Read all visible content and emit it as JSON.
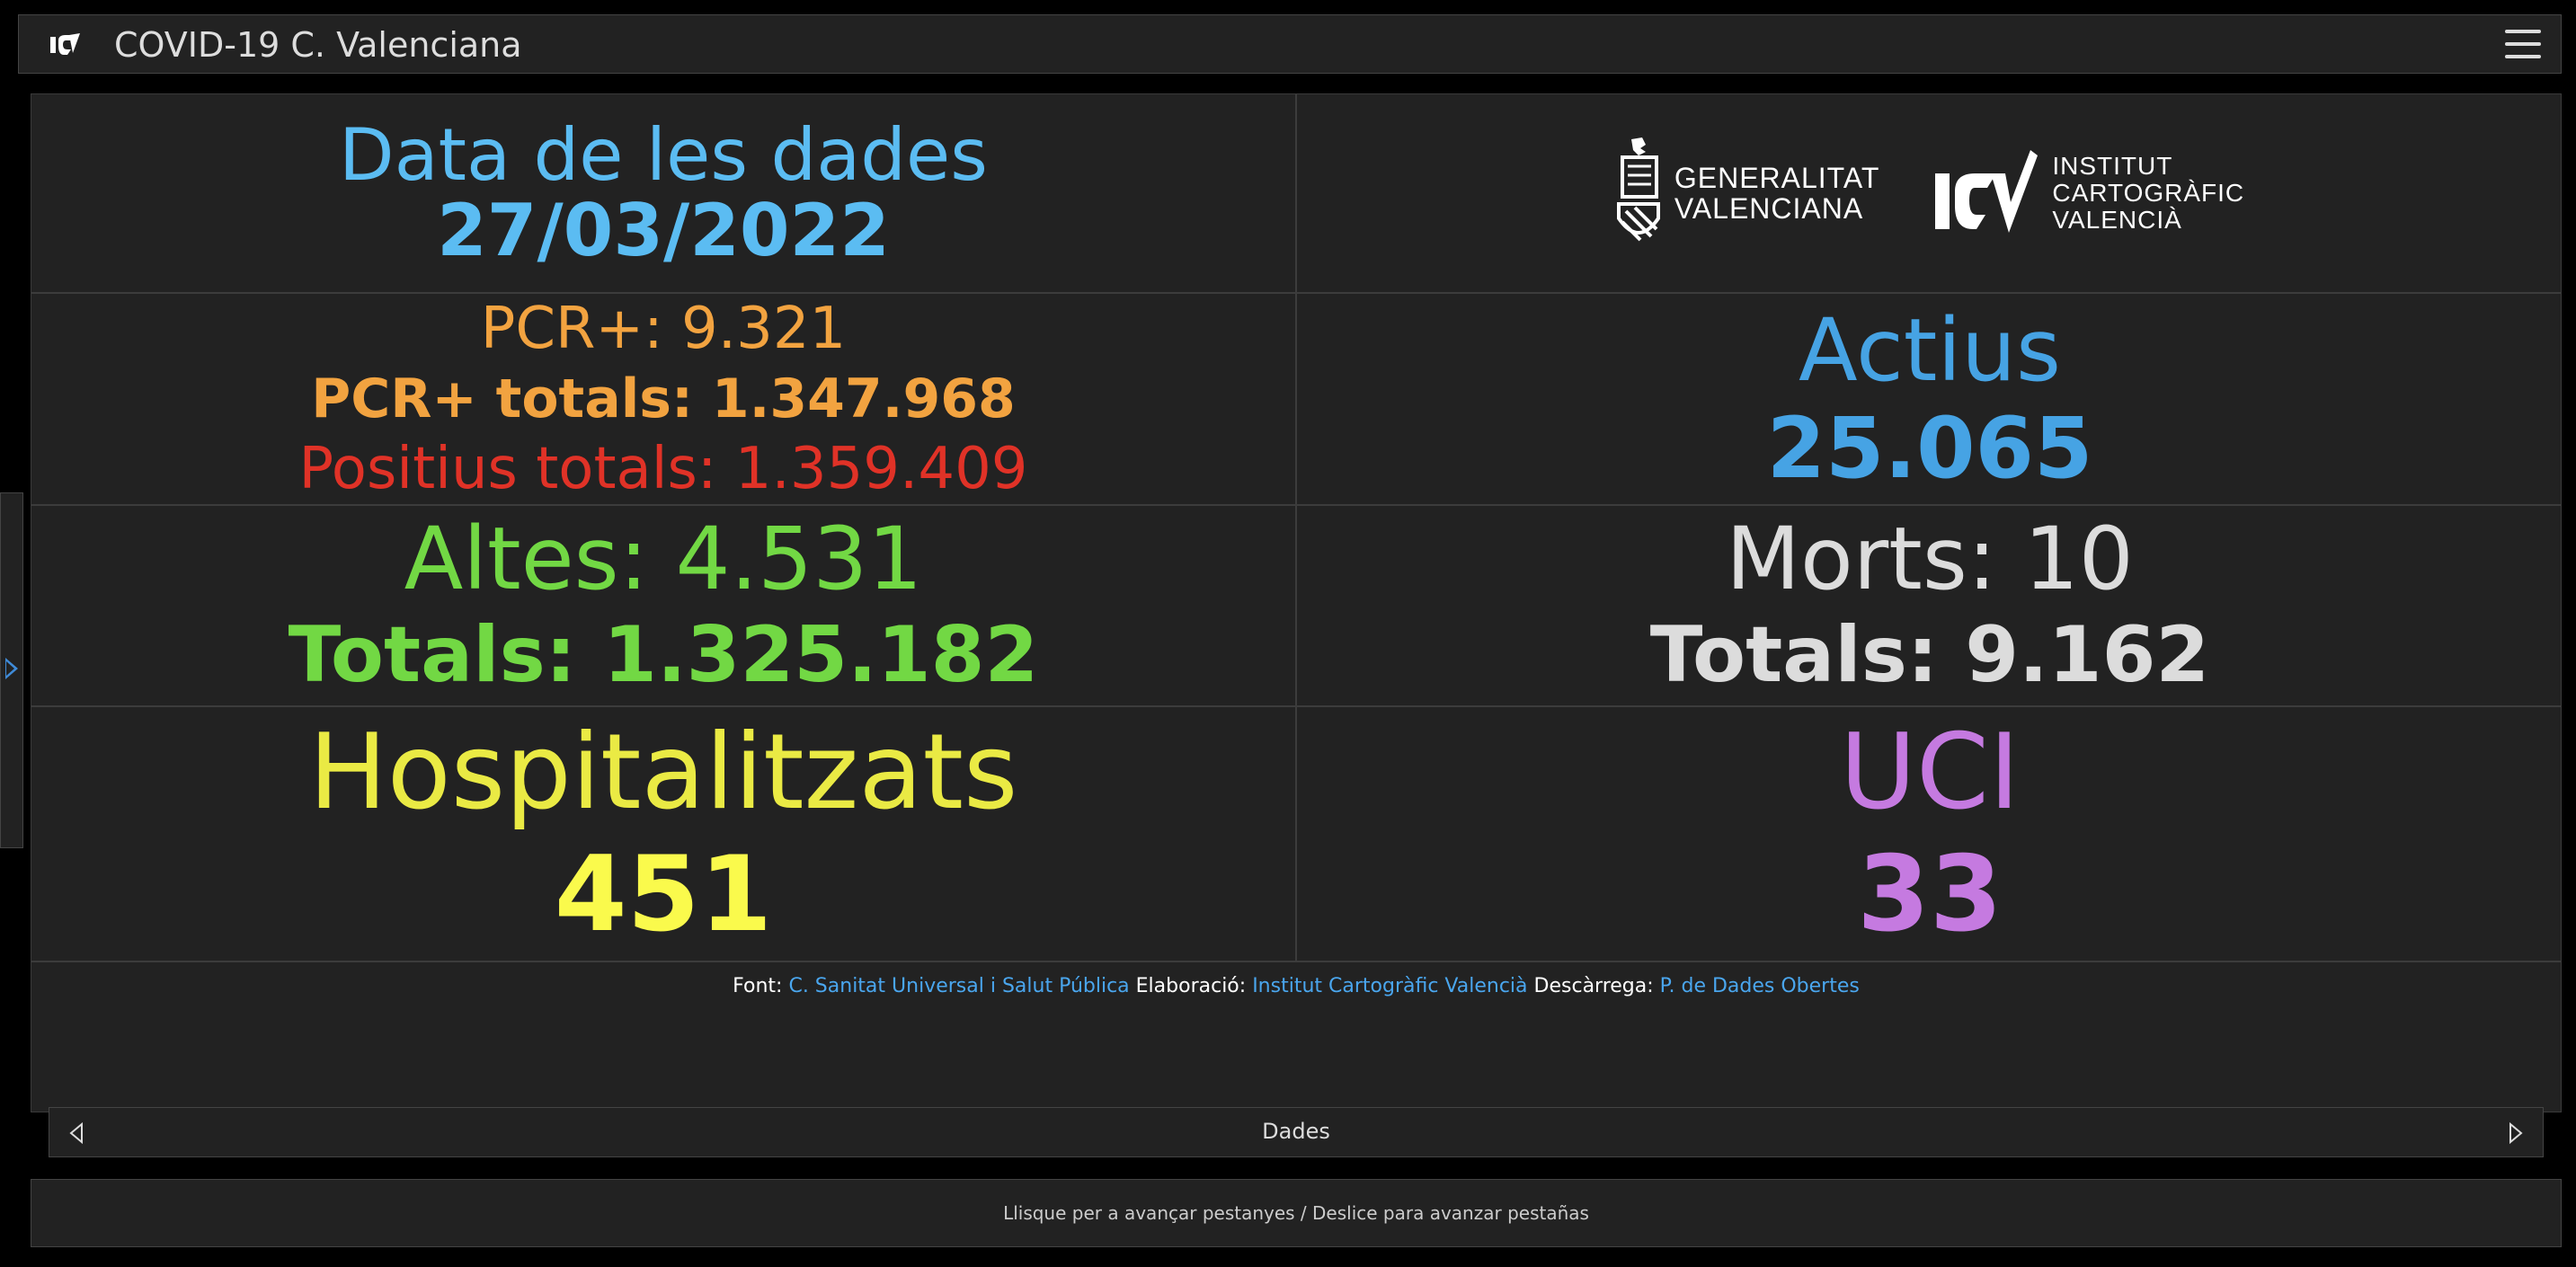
{
  "header": {
    "title": "COVID-19 C. Valenciana",
    "logo_icon": "icv-logo-icon",
    "menu_icon": "hamburger-menu-icon"
  },
  "side_panel": {
    "expand_icon": "chevron-right-icon"
  },
  "dashboard": {
    "date": {
      "label": "Data de les dades",
      "value": "27/03/2022"
    },
    "logos": {
      "generalitat": [
        "GENERALITAT",
        "VALENCIANA"
      ],
      "institut": [
        "INSTITUT",
        "CARTOGRÀFIC",
        "VALENCIÀ"
      ]
    },
    "pcr": {
      "daily": "PCR+: 9.321",
      "total": "PCR+ totals: 1.347.968",
      "positius": "Positius totals: 1.359.409"
    },
    "actius": {
      "label": "Actius",
      "value": "25.065"
    },
    "altes": {
      "daily": "Altes: 4.531",
      "total": "Totals: 1.325.182"
    },
    "morts": {
      "daily": "Morts: 10",
      "total": "Totals: 9.162"
    },
    "hospitalitzats": {
      "label": "Hospitalitzats",
      "value": "451"
    },
    "uci": {
      "label": "UCI",
      "value": "33"
    },
    "credits": {
      "font_label": "Font:",
      "font_link": "C. Sanitat Universal i Salut Pública",
      "elab_label": "Elaboració:",
      "elab_link": "Institut Cartogràfic Valencià",
      "desc_label": "Descàrrega:",
      "desc_link": "P. de Dades Obertes"
    }
  },
  "tabbar": {
    "label": "Dades",
    "prev_icon": "chevron-left-icon",
    "next_icon": "chevron-right-icon"
  },
  "hint": "Llisque per a avançar pestanyes / Deslice para avanzar pestañas",
  "colors": {
    "background": "#000000",
    "panel": "#222222",
    "date": "#5bbcf2",
    "pcr": "#f2a340",
    "positius": "#e03227",
    "actius": "#46a3e4",
    "altes": "#72d844",
    "morts": "#dcdcdc",
    "hospitalitzats": "#eaea44",
    "uci": "#c57ae0"
  }
}
